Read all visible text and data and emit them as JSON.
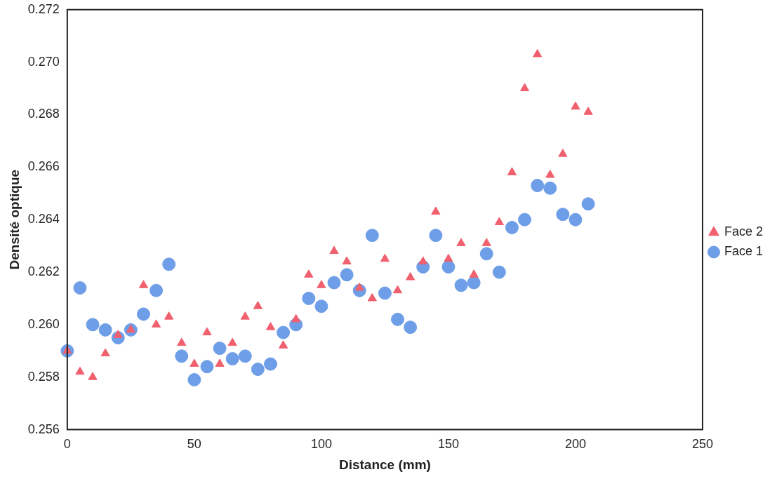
{
  "chart_data": {
    "type": "scatter",
    "xlabel": "Distance (mm)",
    "ylabel": "Densité optique",
    "x": [
      0,
      5,
      10,
      15,
      20,
      25,
      30,
      35,
      40,
      45,
      50,
      55,
      60,
      65,
      70,
      75,
      80,
      85,
      90,
      95,
      100,
      105,
      110,
      115,
      120,
      125,
      130,
      135,
      140,
      145,
      150,
      155,
      160,
      165,
      170,
      175,
      180,
      185,
      190,
      195,
      200,
      205
    ],
    "series": [
      {
        "name": "Face 2",
        "color": "#f0606e",
        "marker": "triangle",
        "values": [
          0.259,
          0.2582,
          0.258,
          0.2589,
          0.2596,
          0.2598,
          0.2615,
          0.26,
          0.2603,
          0.2593,
          0.2585,
          0.2597,
          0.2585,
          0.2593,
          0.2603,
          0.2607,
          0.2599,
          0.2592,
          0.2602,
          0.2619,
          0.2615,
          0.2628,
          0.2624,
          0.2614,
          0.261,
          0.2625,
          0.2613,
          0.2618,
          0.2624,
          0.2643,
          0.2625,
          0.2631,
          0.2619,
          0.2631,
          0.2639,
          0.2658,
          0.269,
          0.2703,
          0.2657,
          0.2665,
          0.2683,
          0.2681
        ]
      },
      {
        "name": "Face 1",
        "color": "#6e9ee8",
        "marker": "circle",
        "values": [
          0.259,
          0.2614,
          0.26,
          0.2598,
          0.2595,
          0.2598,
          0.2604,
          0.2613,
          0.2623,
          0.2588,
          0.2579,
          0.2584,
          0.2591,
          0.2587,
          0.2588,
          0.2583,
          0.2585,
          0.2597,
          0.26,
          0.261,
          0.2607,
          0.2616,
          0.2619,
          0.2613,
          0.2634,
          0.2612,
          0.2602,
          0.2599,
          0.2622,
          0.2634,
          0.2622,
          0.2615,
          0.2616,
          0.2627,
          0.262,
          0.2637,
          0.264,
          0.2653,
          0.2652,
          0.2642,
          0.264,
          0.2646
        ]
      }
    ],
    "xlim": [
      0,
      250
    ],
    "xticks": [
      0,
      50,
      100,
      150,
      200,
      250
    ],
    "ylim": [
      0.256,
      0.272
    ],
    "yticks": [
      0.256,
      0.258,
      {
        "value": 0.26,
        "label": "0.260"
      },
      0.262,
      0.264,
      0.266,
      0.268,
      {
        "value": 0.27,
        "label": "0.270"
      },
      0.272
    ],
    "grid": false,
    "legend": "right"
  }
}
